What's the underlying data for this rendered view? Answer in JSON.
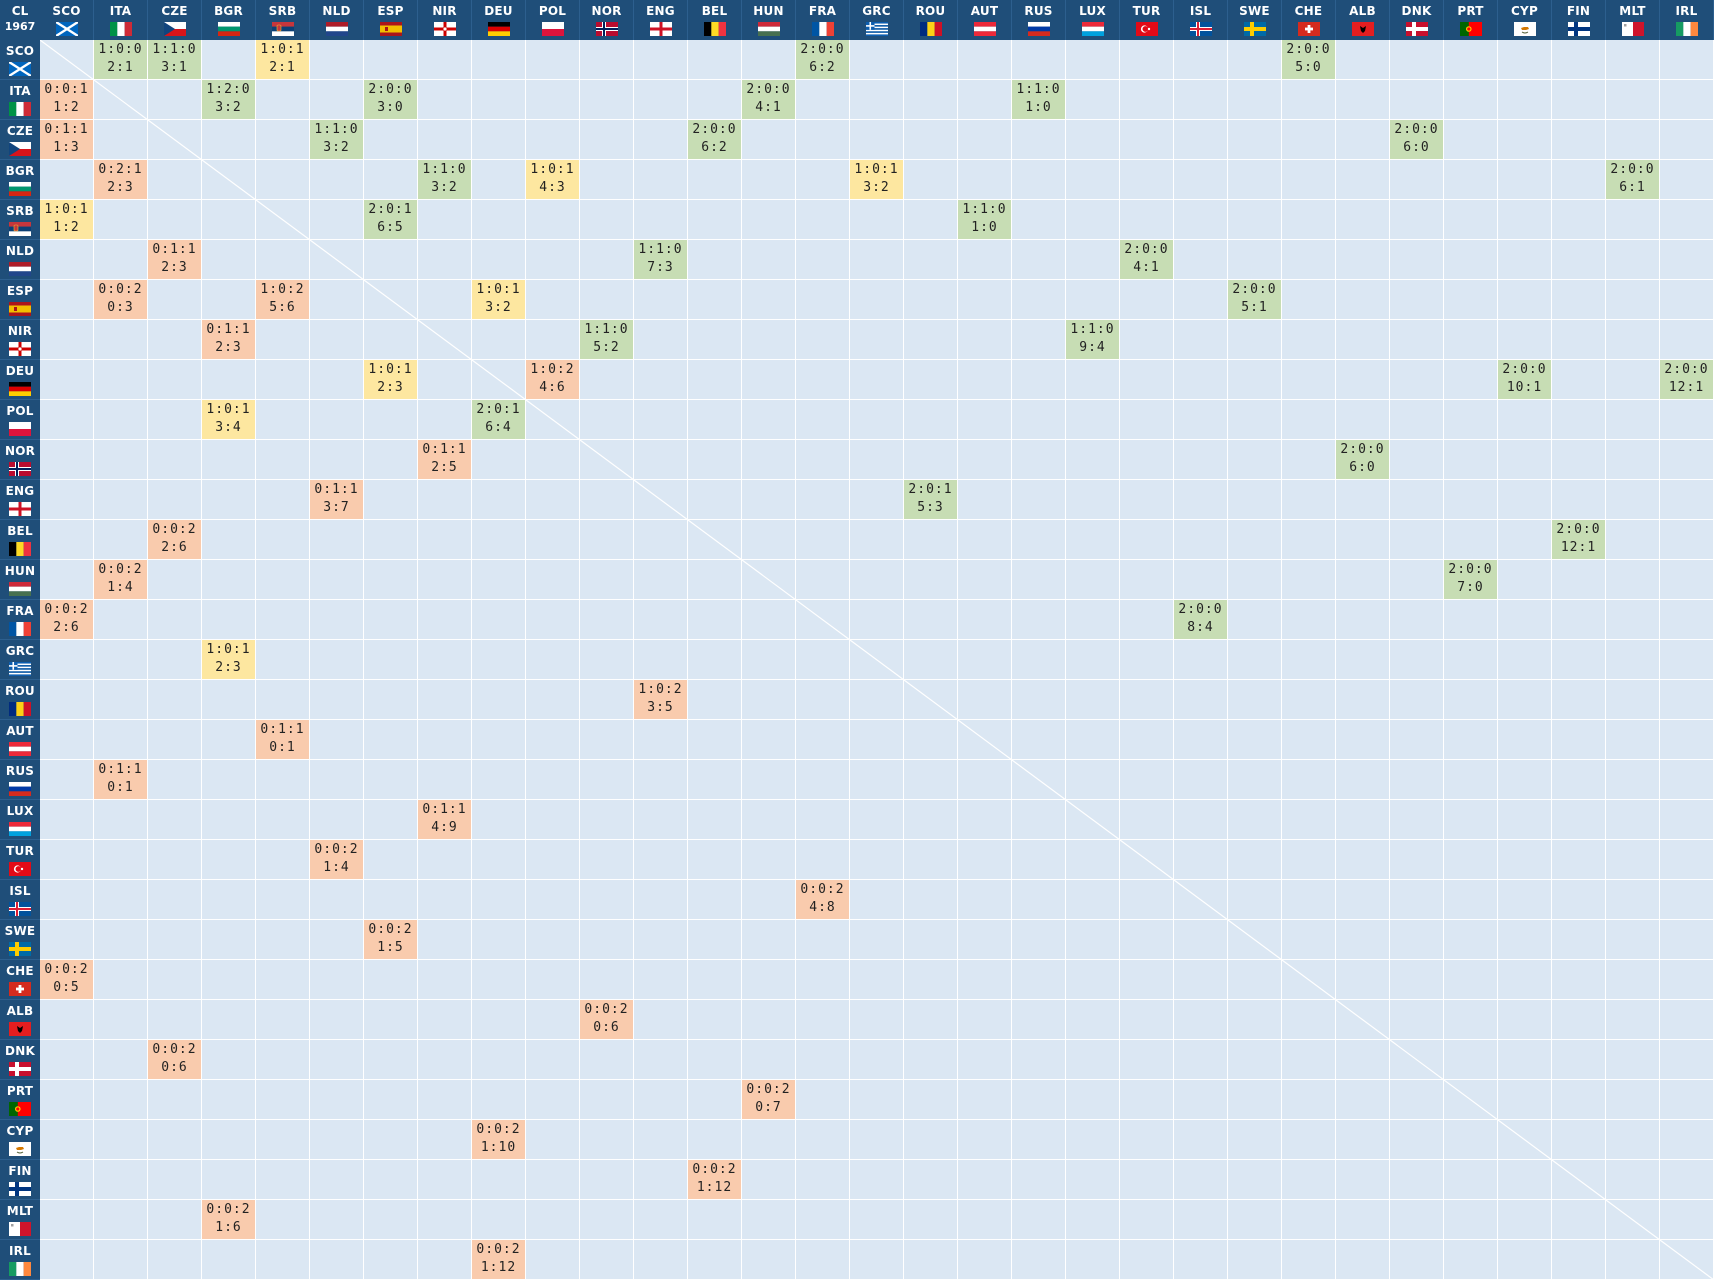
{
  "corner": {
    "line1": "CL",
    "line2": "1967"
  },
  "colors": {
    "header_bg": "#1f4e79",
    "cell_bg": "#dbe7f3",
    "win": "#c7ddb4",
    "draw": "#fde7a0",
    "loss": "#f9cbad",
    "grid_line": "#ffffff"
  },
  "teams": [
    {
      "code": "SCO",
      "flag": "scotland"
    },
    {
      "code": "ITA",
      "flag": "italy"
    },
    {
      "code": "CZE",
      "flag": "czechia"
    },
    {
      "code": "BGR",
      "flag": "bulgaria"
    },
    {
      "code": "SRB",
      "flag": "serbia"
    },
    {
      "code": "NLD",
      "flag": "netherlands"
    },
    {
      "code": "ESP",
      "flag": "spain"
    },
    {
      "code": "NIR",
      "flag": "northern-ireland"
    },
    {
      "code": "DEU",
      "flag": "germany"
    },
    {
      "code": "POL",
      "flag": "poland"
    },
    {
      "code": "NOR",
      "flag": "norway"
    },
    {
      "code": "ENG",
      "flag": "england"
    },
    {
      "code": "BEL",
      "flag": "belgium"
    },
    {
      "code": "HUN",
      "flag": "hungary"
    },
    {
      "code": "FRA",
      "flag": "france"
    },
    {
      "code": "GRC",
      "flag": "greece"
    },
    {
      "code": "ROU",
      "flag": "romania"
    },
    {
      "code": "AUT",
      "flag": "austria"
    },
    {
      "code": "RUS",
      "flag": "russia"
    },
    {
      "code": "LUX",
      "flag": "luxembourg"
    },
    {
      "code": "TUR",
      "flag": "turkey"
    },
    {
      "code": "ISL",
      "flag": "iceland"
    },
    {
      "code": "SWE",
      "flag": "sweden"
    },
    {
      "code": "CHE",
      "flag": "switzerland"
    },
    {
      "code": "ALB",
      "flag": "albania"
    },
    {
      "code": "DNK",
      "flag": "denmark"
    },
    {
      "code": "PRT",
      "flag": "portugal"
    },
    {
      "code": "CYP",
      "flag": "cyprus"
    },
    {
      "code": "FIN",
      "flag": "finland"
    },
    {
      "code": "MLT",
      "flag": "malta"
    },
    {
      "code": "IRL",
      "flag": "ireland"
    }
  ],
  "results": [
    {
      "row": 0,
      "col": 1,
      "record": "1:0:0",
      "score": "2:1",
      "result": "win"
    },
    {
      "row": 0,
      "col": 2,
      "record": "1:1:0",
      "score": "3:1",
      "result": "win"
    },
    {
      "row": 0,
      "col": 4,
      "record": "1:0:1",
      "score": "2:1",
      "result": "draw"
    },
    {
      "row": 0,
      "col": 14,
      "record": "2:0:0",
      "score": "6:2",
      "result": "win"
    },
    {
      "row": 0,
      "col": 23,
      "record": "2:0:0",
      "score": "5:0",
      "result": "win"
    },
    {
      "row": 1,
      "col": 0,
      "record": "0:0:1",
      "score": "1:2",
      "result": "loss"
    },
    {
      "row": 1,
      "col": 3,
      "record": "1:2:0",
      "score": "3:2",
      "result": "win"
    },
    {
      "row": 1,
      "col": 6,
      "record": "2:0:0",
      "score": "3:0",
      "result": "win"
    },
    {
      "row": 1,
      "col": 13,
      "record": "2:0:0",
      "score": "4:1",
      "result": "win"
    },
    {
      "row": 1,
      "col": 18,
      "record": "1:1:0",
      "score": "1:0",
      "result": "win"
    },
    {
      "row": 2,
      "col": 0,
      "record": "0:1:1",
      "score": "1:3",
      "result": "loss"
    },
    {
      "row": 2,
      "col": 5,
      "record": "1:1:0",
      "score": "3:2",
      "result": "win"
    },
    {
      "row": 2,
      "col": 12,
      "record": "2:0:0",
      "score": "6:2",
      "result": "win"
    },
    {
      "row": 2,
      "col": 25,
      "record": "2:0:0",
      "score": "6:0",
      "result": "win"
    },
    {
      "row": 3,
      "col": 1,
      "record": "0:2:1",
      "score": "2:3",
      "result": "loss"
    },
    {
      "row": 3,
      "col": 7,
      "record": "1:1:0",
      "score": "3:2",
      "result": "win"
    },
    {
      "row": 3,
      "col": 9,
      "record": "1:0:1",
      "score": "4:3",
      "result": "draw"
    },
    {
      "row": 3,
      "col": 15,
      "record": "1:0:1",
      "score": "3:2",
      "result": "draw"
    },
    {
      "row": 3,
      "col": 29,
      "record": "2:0:0",
      "score": "6:1",
      "result": "win"
    },
    {
      "row": 4,
      "col": 0,
      "record": "1:0:1",
      "score": "1:2",
      "result": "draw"
    },
    {
      "row": 4,
      "col": 6,
      "record": "2:0:1",
      "score": "6:5",
      "result": "win"
    },
    {
      "row": 4,
      "col": 17,
      "record": "1:1:0",
      "score": "1:0",
      "result": "win"
    },
    {
      "row": 5,
      "col": 2,
      "record": "0:1:1",
      "score": "2:3",
      "result": "loss"
    },
    {
      "row": 5,
      "col": 11,
      "record": "1:1:0",
      "score": "7:3",
      "result": "win"
    },
    {
      "row": 5,
      "col": 20,
      "record": "2:0:0",
      "score": "4:1",
      "result": "win"
    },
    {
      "row": 6,
      "col": 1,
      "record": "0:0:2",
      "score": "0:3",
      "result": "loss"
    },
    {
      "row": 6,
      "col": 4,
      "record": "1:0:2",
      "score": "5:6",
      "result": "loss"
    },
    {
      "row": 6,
      "col": 8,
      "record": "1:0:1",
      "score": "3:2",
      "result": "draw"
    },
    {
      "row": 6,
      "col": 22,
      "record": "2:0:0",
      "score": "5:1",
      "result": "win"
    },
    {
      "row": 7,
      "col": 3,
      "record": "0:1:1",
      "score": "2:3",
      "result": "loss"
    },
    {
      "row": 7,
      "col": 10,
      "record": "1:1:0",
      "score": "5:2",
      "result": "win"
    },
    {
      "row": 7,
      "col": 19,
      "record": "1:1:0",
      "score": "9:4",
      "result": "win"
    },
    {
      "row": 8,
      "col": 6,
      "record": "1:0:1",
      "score": "2:3",
      "result": "draw"
    },
    {
      "row": 8,
      "col": 9,
      "record": "1:0:2",
      "score": "4:6",
      "result": "loss"
    },
    {
      "row": 8,
      "col": 27,
      "record": "2:0:0",
      "score": "10:1",
      "result": "win"
    },
    {
      "row": 8,
      "col": 30,
      "record": "2:0:0",
      "score": "12:1",
      "result": "win"
    },
    {
      "row": 9,
      "col": 3,
      "record": "1:0:1",
      "score": "3:4",
      "result": "draw"
    },
    {
      "row": 9,
      "col": 8,
      "record": "2:0:1",
      "score": "6:4",
      "result": "win"
    },
    {
      "row": 10,
      "col": 7,
      "record": "0:1:1",
      "score": "2:5",
      "result": "loss"
    },
    {
      "row": 10,
      "col": 24,
      "record": "2:0:0",
      "score": "6:0",
      "result": "win"
    },
    {
      "row": 11,
      "col": 5,
      "record": "0:1:1",
      "score": "3:7",
      "result": "loss"
    },
    {
      "row": 11,
      "col": 16,
      "record": "2:0:1",
      "score": "5:3",
      "result": "win"
    },
    {
      "row": 12,
      "col": 2,
      "record": "0:0:2",
      "score": "2:6",
      "result": "loss"
    },
    {
      "row": 12,
      "col": 28,
      "record": "2:0:0",
      "score": "12:1",
      "result": "win"
    },
    {
      "row": 13,
      "col": 1,
      "record": "0:0:2",
      "score": "1:4",
      "result": "loss"
    },
    {
      "row": 13,
      "col": 26,
      "record": "2:0:0",
      "score": "7:0",
      "result": "win"
    },
    {
      "row": 14,
      "col": 0,
      "record": "0:0:2",
      "score": "2:6",
      "result": "loss"
    },
    {
      "row": 14,
      "col": 21,
      "record": "2:0:0",
      "score": "8:4",
      "result": "win"
    },
    {
      "row": 15,
      "col": 3,
      "record": "1:0:1",
      "score": "2:3",
      "result": "draw"
    },
    {
      "row": 16,
      "col": 11,
      "record": "1:0:2",
      "score": "3:5",
      "result": "loss"
    },
    {
      "row": 17,
      "col": 4,
      "record": "0:1:1",
      "score": "0:1",
      "result": "loss"
    },
    {
      "row": 18,
      "col": 1,
      "record": "0:1:1",
      "score": "0:1",
      "result": "loss"
    },
    {
      "row": 19,
      "col": 7,
      "record": "0:1:1",
      "score": "4:9",
      "result": "loss"
    },
    {
      "row": 20,
      "col": 5,
      "record": "0:0:2",
      "score": "1:4",
      "result": "loss"
    },
    {
      "row": 21,
      "col": 14,
      "record": "0:0:2",
      "score": "4:8",
      "result": "loss"
    },
    {
      "row": 22,
      "col": 6,
      "record": "0:0:2",
      "score": "1:5",
      "result": "loss"
    },
    {
      "row": 23,
      "col": 0,
      "record": "0:0:2",
      "score": "0:5",
      "result": "loss"
    },
    {
      "row": 24,
      "col": 10,
      "record": "0:0:2",
      "score": "0:6",
      "result": "loss"
    },
    {
      "row": 25,
      "col": 2,
      "record": "0:0:2",
      "score": "0:6",
      "result": "loss"
    },
    {
      "row": 26,
      "col": 13,
      "record": "0:0:2",
      "score": "0:7",
      "result": "loss"
    },
    {
      "row": 27,
      "col": 8,
      "record": "0:0:2",
      "score": "1:10",
      "result": "loss"
    },
    {
      "row": 28,
      "col": 12,
      "record": "0:0:2",
      "score": "1:12",
      "result": "loss"
    },
    {
      "row": 29,
      "col": 3,
      "record": "0:0:2",
      "score": "1:6",
      "result": "loss"
    },
    {
      "row": 30,
      "col": 8,
      "record": "0:0:2",
      "score": "1:12",
      "result": "loss"
    }
  ]
}
